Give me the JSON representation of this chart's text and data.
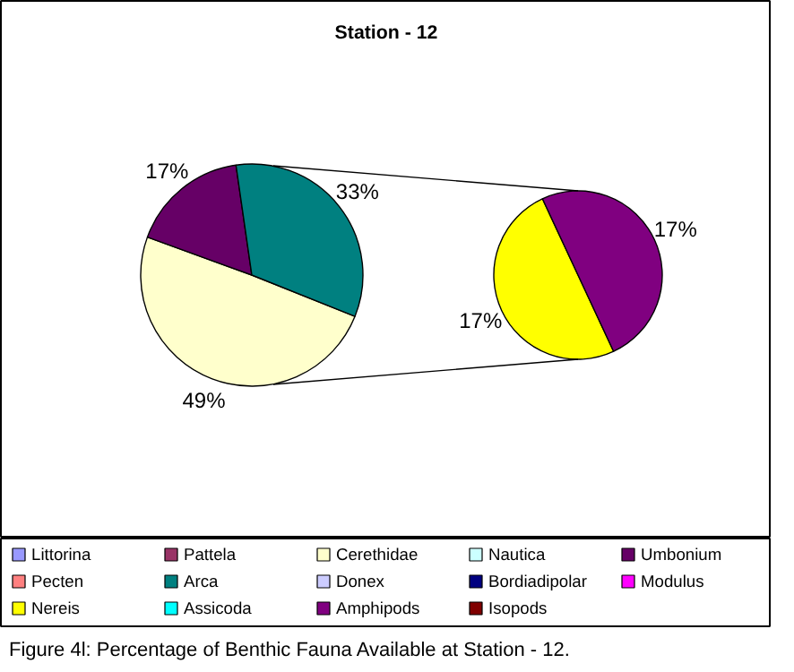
{
  "chart_data": [
    {
      "type": "pie",
      "title": "Station - 12",
      "legend": "bottom",
      "categories": [
        "Littorina",
        "Pattela",
        "Cerethidae",
        "Nautica",
        "Umbonium",
        "Pecten",
        "Arca",
        "Donex",
        "Bordiadipolar",
        "Modulus",
        "Assicoda",
        "Isopods"
      ],
      "values": [
        null,
        null,
        49,
        null,
        17,
        null,
        33,
        null,
        null,
        null,
        null,
        null
      ],
      "colors": [
        "#9999ff",
        "#993366",
        "#ffffcc",
        "#ccffff",
        "#660066",
        "#ff8080",
        "#008080",
        "#ccccff",
        "#000080",
        "#ff00ff",
        "#00ffff",
        "#800000"
      ],
      "value_labels": [
        null,
        null,
        "49%",
        null,
        "17%",
        null,
        "33%",
        null,
        null,
        null,
        null,
        null
      ],
      "annotations": [
        "Figure 4l: Percentage of Benthic Fauna Available at Station - 12."
      ]
    },
    {
      "type": "pie",
      "legend": "bottom",
      "categories": [
        "Nereis",
        "Amphipods"
      ],
      "values": [
        17,
        17
      ],
      "colors": [
        "#ffff00",
        "#800080"
      ],
      "value_labels": [
        "17%",
        "17%"
      ]
    }
  ]
}
